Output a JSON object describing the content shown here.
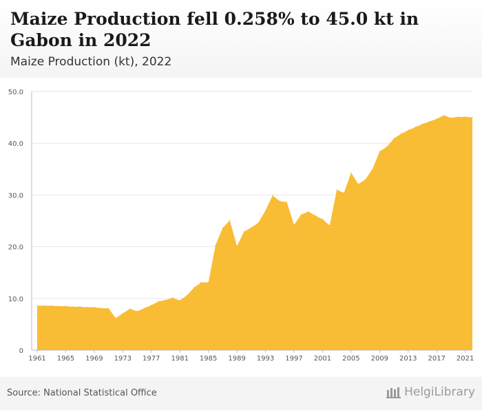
{
  "header": {
    "title": "Maize Production fell 0.258% to 45.0 kt in Gabon in 2022",
    "subtitle": "Maize Production (kt), 2022"
  },
  "footer": {
    "source": "Source: National Statistical Office",
    "brand": "HelgiLibrary"
  },
  "colors": {
    "fill": "#f9bc35",
    "grid": "#e6e6e6",
    "axis": "#bbbbbb"
  },
  "chart_data": {
    "type": "area",
    "title": "",
    "xlabel": "",
    "ylabel": "",
    "x": [
      1961,
      1962,
      1963,
      1964,
      1965,
      1966,
      1967,
      1968,
      1969,
      1970,
      1971,
      1972,
      1973,
      1974,
      1975,
      1976,
      1977,
      1978,
      1979,
      1980,
      1981,
      1982,
      1983,
      1984,
      1985,
      1986,
      1987,
      1988,
      1989,
      1990,
      1991,
      1992,
      1993,
      1994,
      1995,
      1996,
      1997,
      1998,
      1999,
      2000,
      2001,
      2002,
      2003,
      2004,
      2005,
      2006,
      2007,
      2008,
      2009,
      2010,
      2011,
      2012,
      2013,
      2014,
      2015,
      2016,
      2017,
      2018,
      2019,
      2020,
      2021,
      2022
    ],
    "values": [
      8.6,
      8.6,
      8.6,
      8.5,
      8.5,
      8.4,
      8.4,
      8.3,
      8.3,
      8.1,
      8.1,
      6.2,
      7.1,
      8.0,
      7.5,
      8.1,
      8.7,
      9.4,
      9.7,
      10.1,
      9.6,
      10.6,
      12.1,
      13.1,
      13.1,
      20.3,
      23.6,
      25.1,
      20.1,
      22.9,
      23.7,
      24.6,
      27.0,
      29.9,
      28.8,
      28.6,
      24.2,
      26.2,
      26.8,
      26.0,
      25.3,
      24.1,
      31.0,
      30.4,
      34.3,
      32.1,
      33.0,
      35.0,
      38.4,
      39.3,
      40.9,
      41.8,
      42.5,
      43.1,
      43.7,
      44.2,
      44.7,
      45.4,
      44.9,
      45.1,
      45.1,
      45.0
    ],
    "ylim": [
      0,
      50
    ],
    "yticks": [
      0,
      10,
      20,
      30,
      40,
      50
    ],
    "ytick_labels": [
      "0",
      "10.0",
      "20.0",
      "30.0",
      "40.0",
      "50.0"
    ],
    "xticks": [
      1961,
      1965,
      1969,
      1973,
      1977,
      1981,
      1985,
      1989,
      1993,
      1997,
      2001,
      2005,
      2009,
      2013,
      2017,
      2021
    ],
    "grid": true
  }
}
